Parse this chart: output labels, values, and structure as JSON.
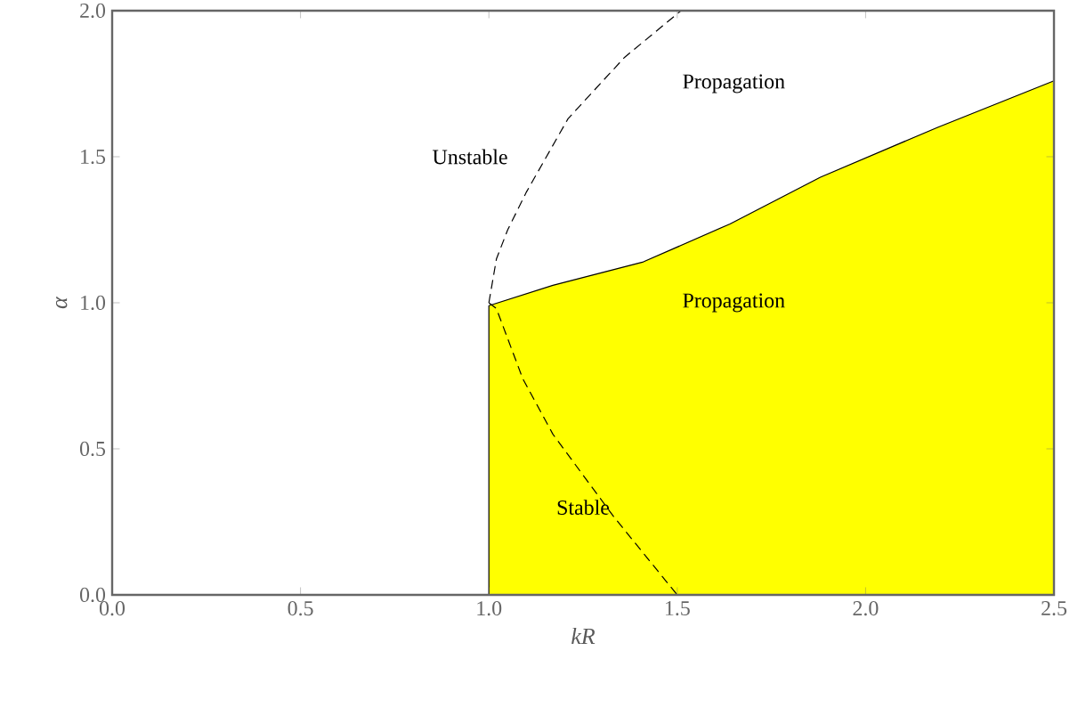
{
  "chart_data": {
    "type": "line",
    "xlabel": "*kR*",
    "ylabel": "*α*",
    "xlim": [
      0,
      2.5
    ],
    "ylim": [
      0,
      2.0
    ],
    "xticks": [
      {
        "value": 0,
        "label": "0.0"
      },
      0.5,
      {
        "value": 1,
        "label": "1.0"
      },
      1.5,
      {
        "value": 2,
        "label": "2.0"
      },
      2.5
    ],
    "yticks": [
      {
        "value": 0,
        "label": "0.0"
      },
      0.5,
      {
        "value": 1,
        "label": "1.0"
      },
      1.5,
      {
        "value": 2,
        "label": "2.0"
      }
    ],
    "series": [
      {
        "type": "area",
        "color": "#ffff00",
        "x": [
          1,
          1,
          1.17,
          1.41,
          1.64,
          1.88,
          2.19,
          2.5
        ],
        "values": [
          0,
          0.99,
          1.06,
          1.14,
          1.27,
          1.43,
          1.6,
          1.76
        ]
      },
      {
        "color": "#000000",
        "line_style": "dashed",
        "x": [
          1,
          1.02,
          1.05,
          1.1,
          1.21,
          1.36,
          1.51
        ],
        "values": [
          1,
          1.15,
          1.25,
          1.38,
          1.63,
          1.84,
          2.0
        ]
      },
      {
        "color": "#000000",
        "line_style": "dashed",
        "x": [
          1,
          1.02,
          1.09,
          1.17,
          1.33,
          1.5
        ],
        "values": [
          1,
          0.98,
          0.74,
          0.55,
          0.27,
          0
        ]
      }
    ],
    "annotations": [
      "Propagation",
      "Unstable",
      "Propagation",
      "Stable"
    ]
  }
}
